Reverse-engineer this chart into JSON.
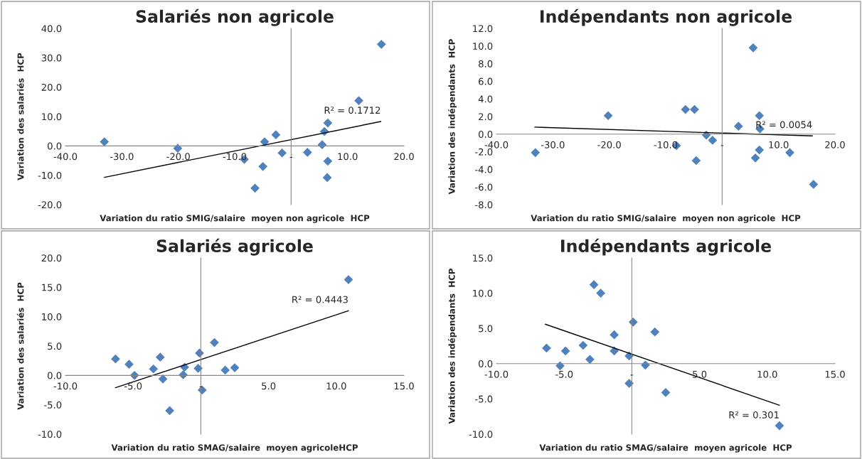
{
  "chart_data": [
    {
      "type": "scatter",
      "title": "Salariés non agricole",
      "xlabel": "Variation du ratio SMIG/salaire  moyen non agricole  HCP",
      "ylabel": "Variation des salariés  HCP",
      "marker": "diamond",
      "xlim": [
        -40,
        20
      ],
      "xticks": [
        {
          "value": -40,
          "label": "-40.0"
        },
        {
          "value": -30,
          "label": "-30.0"
        },
        {
          "value": -20,
          "label": "-20.0"
        },
        {
          "value": -10,
          "label": "-10.0"
        },
        {
          "value": 0,
          "label": "-"
        },
        {
          "value": 10,
          "label": "10.0"
        },
        {
          "value": 20,
          "label": "20.0"
        }
      ],
      "ylim": [
        -20,
        40
      ],
      "yticks": [
        {
          "value": -20,
          "label": "-20.0"
        },
        {
          "value": -10,
          "label": "-10.0"
        },
        {
          "value": 0,
          "label": "0.0"
        },
        {
          "value": 10,
          "label": "10.0"
        },
        {
          "value": 20,
          "label": "20.0"
        },
        {
          "value": 30,
          "label": "30.0"
        },
        {
          "value": 40,
          "label": "40.0"
        }
      ],
      "series": [
        {
          "color": "#4f81bd",
          "x": [
            -33.1,
            -20.1,
            -8.3,
            -6.4,
            -5.0,
            -4.7,
            -2.7,
            -1.6,
            2.9,
            5.5,
            5.9,
            6.5,
            6.5,
            6.4,
            12.0,
            16.0
          ],
          "values": [
            1.4,
            -0.8,
            -4.6,
            -14.4,
            -7.0,
            1.4,
            3.8,
            -2.4,
            -2.2,
            0.4,
            4.9,
            7.8,
            -5.2,
            -10.8,
            15.4,
            34.6
          ]
        },
        {
          "type": "line",
          "color": "#000000",
          "marker": "none",
          "x": [
            -33.1,
            15.9
          ],
          "values": [
            -10.7,
            8.3
          ]
        }
      ],
      "annotations": [
        "R² = 0.1712"
      ]
    },
    {
      "type": "scatter",
      "title": "Indépendants non agricole",
      "xlabel": "Variation du ratio SMIG/salaire  moyen non agricole  HCP",
      "ylabel": "Variation des indépendants  HCP",
      "marker": "diamond",
      "xlim": [
        -40,
        20
      ],
      "xticks": [
        {
          "value": -40,
          "label": "-40.0"
        },
        {
          "value": -30,
          "label": "-30.0"
        },
        {
          "value": -20,
          "label": "-20.0"
        },
        {
          "value": -10,
          "label": "-10.0"
        },
        {
          "value": 0,
          "label": "-"
        },
        {
          "value": 10,
          "label": "10.0"
        },
        {
          "value": 20,
          "label": "20.0"
        }
      ],
      "ylim": [
        -8,
        12
      ],
      "yticks": [
        {
          "value": -8,
          "label": "-8.0"
        },
        {
          "value": -6,
          "label": "-6.0"
        },
        {
          "value": -4,
          "label": "-4.0"
        },
        {
          "value": -2,
          "label": "-2.0"
        },
        {
          "value": 0,
          "label": "0.0"
        },
        {
          "value": 2,
          "label": "2.0"
        },
        {
          "value": 4,
          "label": "4.0"
        },
        {
          "value": 6,
          "label": "6.0"
        },
        {
          "value": 8,
          "label": "8.0"
        },
        {
          "value": 10,
          "label": "10.0"
        },
        {
          "value": 12,
          "label": "12.0"
        }
      ],
      "series": [
        {
          "color": "#4f81bd",
          "x": [
            -33.1,
            -20.2,
            -8.1,
            -6.5,
            -4.9,
            -4.6,
            -2.8,
            -1.7,
            2.9,
            5.5,
            5.9,
            6.6,
            6.7,
            6.6,
            12.0,
            16.2
          ],
          "values": [
            -2.1,
            2.1,
            -1.3,
            2.8,
            2.8,
            -3.0,
            -0.1,
            -0.7,
            0.9,
            9.8,
            -2.7,
            2.1,
            0.6,
            -1.8,
            -2.1,
            -5.7
          ]
        },
        {
          "type": "line",
          "color": "#000000",
          "marker": "none",
          "x": [
            -33.2,
            16.0
          ],
          "values": [
            0.8,
            -0.2
          ]
        }
      ],
      "annotations": [
        "R² = 0.0054"
      ]
    },
    {
      "type": "scatter",
      "title": "Salariés agricole",
      "xlabel": "Variation du ratio SMAG/salaire  moyen agricoleHCP",
      "ylabel": "Variation des salariés  HCP",
      "marker": "diamond",
      "xlim": [
        -10,
        15
      ],
      "xticks": [
        {
          "value": -10,
          "label": "-10.0"
        },
        {
          "value": -5,
          "label": "-5.0"
        },
        {
          "value": 0,
          "label": "-"
        },
        {
          "value": 5,
          "label": "5.0"
        },
        {
          "value": 10,
          "label": "10.0"
        },
        {
          "value": 15,
          "label": "15.0"
        }
      ],
      "ylim": [
        -10,
        20
      ],
      "yticks": [
        {
          "value": -10,
          "label": "-10.0"
        },
        {
          "value": -5,
          "label": "-5.0"
        },
        {
          "value": 0,
          "label": "0.0"
        },
        {
          "value": 5,
          "label": "5.0"
        },
        {
          "value": 10,
          "label": "10.0"
        },
        {
          "value": 15,
          "label": "15.0"
        },
        {
          "value": 20,
          "label": "20.0"
        }
      ],
      "series": [
        {
          "color": "#4f81bd",
          "x": [
            -6.3,
            -5.3,
            -4.9,
            -3.5,
            -3.0,
            -2.8,
            -2.3,
            -1.3,
            -1.2,
            -0.2,
            -0.1,
            0.1,
            1.0,
            1.8,
            2.5,
            10.9
          ],
          "values": [
            2.8,
            1.9,
            0.0,
            1.1,
            3.1,
            -0.6,
            -6.0,
            0.1,
            1.4,
            1.2,
            3.8,
            -2.5,
            5.6,
            0.9,
            1.3,
            16.3
          ]
        },
        {
          "type": "line",
          "color": "#000000",
          "marker": "none",
          "x": [
            -6.3,
            10.9
          ],
          "values": [
            -2.1,
            11.0
          ]
        }
      ],
      "annotations": [
        "R² = 0.4443"
      ]
    },
    {
      "type": "scatter",
      "title": "Indépendants agricole",
      "xlabel": "Variation du ratio SMAG/salaire  moyen agricole  HCP",
      "ylabel": "Variation des indépendants  HCP",
      "marker": "diamond",
      "xlim": [
        -10,
        15
      ],
      "xticks": [
        {
          "value": -10,
          "label": "-10.0"
        },
        {
          "value": -5,
          "label": "-5.0"
        },
        {
          "value": 0,
          "label": "-"
        },
        {
          "value": 5,
          "label": "5.0"
        },
        {
          "value": 10,
          "label": "10.0"
        },
        {
          "value": 15,
          "label": "15.0"
        }
      ],
      "ylim": [
        -10,
        15
      ],
      "yticks": [
        {
          "value": -10,
          "label": "-10.0"
        },
        {
          "value": -5,
          "label": "-5.0"
        },
        {
          "value": 0,
          "label": "0.0"
        },
        {
          "value": 5,
          "label": "5.0"
        },
        {
          "value": 10,
          "label": "10.0"
        },
        {
          "value": 15,
          "label": "15.0"
        }
      ],
      "series": [
        {
          "color": "#4f81bd",
          "x": [
            -6.3,
            -5.3,
            -4.9,
            -3.6,
            -3.1,
            -2.8,
            -2.3,
            -1.3,
            -1.3,
            -0.2,
            -0.2,
            0.1,
            1.0,
            1.7,
            2.5,
            10.9
          ],
          "values": [
            2.2,
            -0.3,
            1.8,
            2.6,
            0.6,
            11.2,
            10.0,
            1.8,
            4.1,
            1.1,
            -2.8,
            5.9,
            -0.2,
            4.5,
            -4.1,
            -8.8
          ]
        },
        {
          "type": "line",
          "color": "#000000",
          "marker": "none",
          "x": [
            -6.4,
            10.9
          ],
          "values": [
            5.6,
            -5.9
          ]
        }
      ],
      "annotations": [
        "R² = 0.301"
      ]
    }
  ]
}
